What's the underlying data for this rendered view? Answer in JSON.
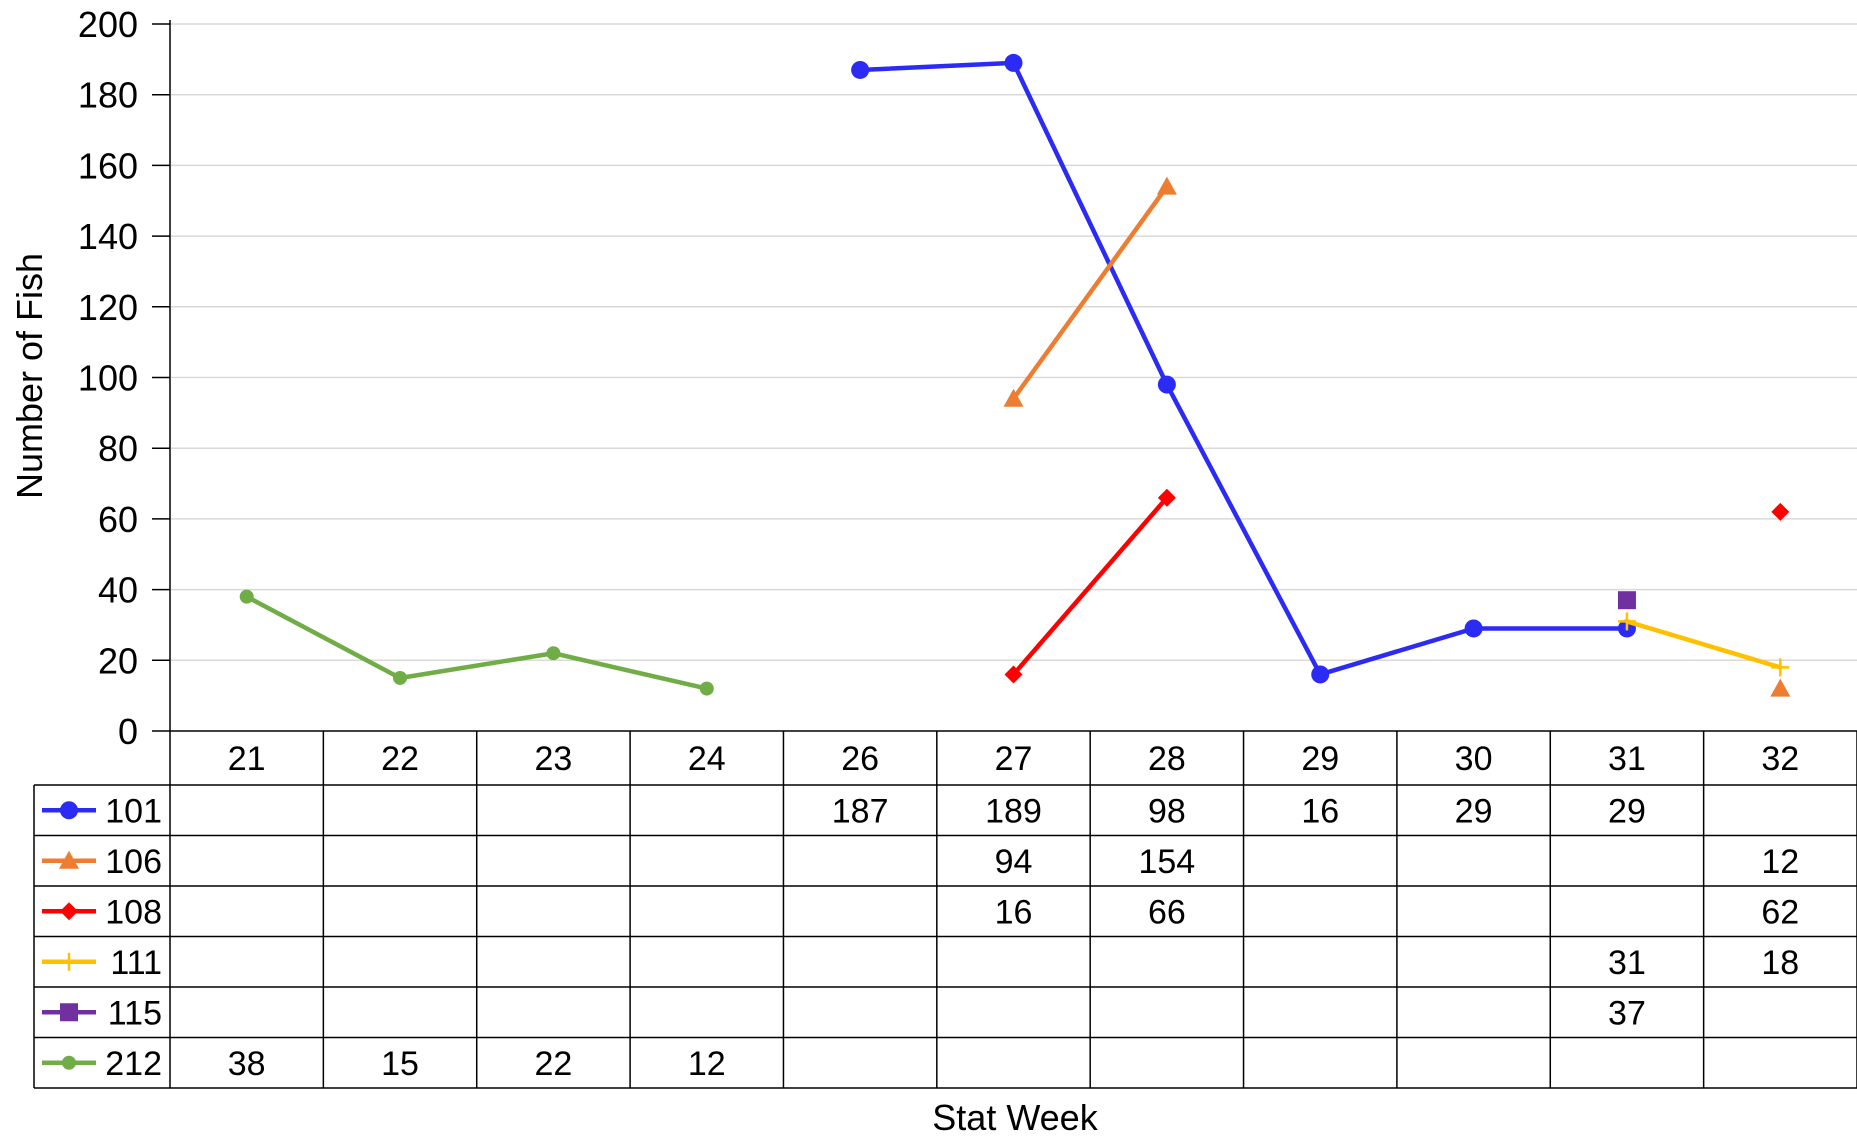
{
  "chart_data": {
    "type": "line",
    "xlabel": "Stat Week",
    "ylabel": "Number of Fish",
    "ylim": [
      0,
      200
    ],
    "yticks": [
      0,
      20,
      40,
      60,
      80,
      100,
      120,
      140,
      160,
      180,
      200
    ],
    "grid": true,
    "legend": "data table below chart",
    "categories": [
      "21",
      "22",
      "23",
      "24",
      "26",
      "27",
      "28",
      "29",
      "30",
      "31",
      "32"
    ],
    "series": [
      {
        "name": "101",
        "color": "#2b2bf5",
        "marker": "circle",
        "values": [
          null,
          null,
          null,
          null,
          187,
          189,
          98,
          16,
          29,
          29,
          null
        ]
      },
      {
        "name": "106",
        "color": "#ed7d31",
        "marker": "triangle",
        "values": [
          null,
          null,
          null,
          null,
          null,
          94,
          154,
          null,
          null,
          null,
          12
        ]
      },
      {
        "name": "108",
        "color": "#ff0000",
        "marker": "diamond",
        "values": [
          null,
          null,
          null,
          null,
          null,
          16,
          66,
          null,
          null,
          null,
          62
        ]
      },
      {
        "name": "111",
        "color": "#ffc000",
        "marker": "plus",
        "values": [
          null,
          null,
          null,
          null,
          null,
          null,
          null,
          null,
          null,
          31,
          18
        ]
      },
      {
        "name": "115",
        "color": "#7030a0",
        "marker": "square",
        "values": [
          null,
          null,
          null,
          null,
          null,
          null,
          null,
          null,
          null,
          37,
          null
        ]
      },
      {
        "name": "212",
        "color": "#70ad47",
        "marker": "small-circle",
        "values": [
          38,
          15,
          22,
          12,
          null,
          null,
          null,
          null,
          null,
          null,
          null
        ]
      }
    ]
  }
}
